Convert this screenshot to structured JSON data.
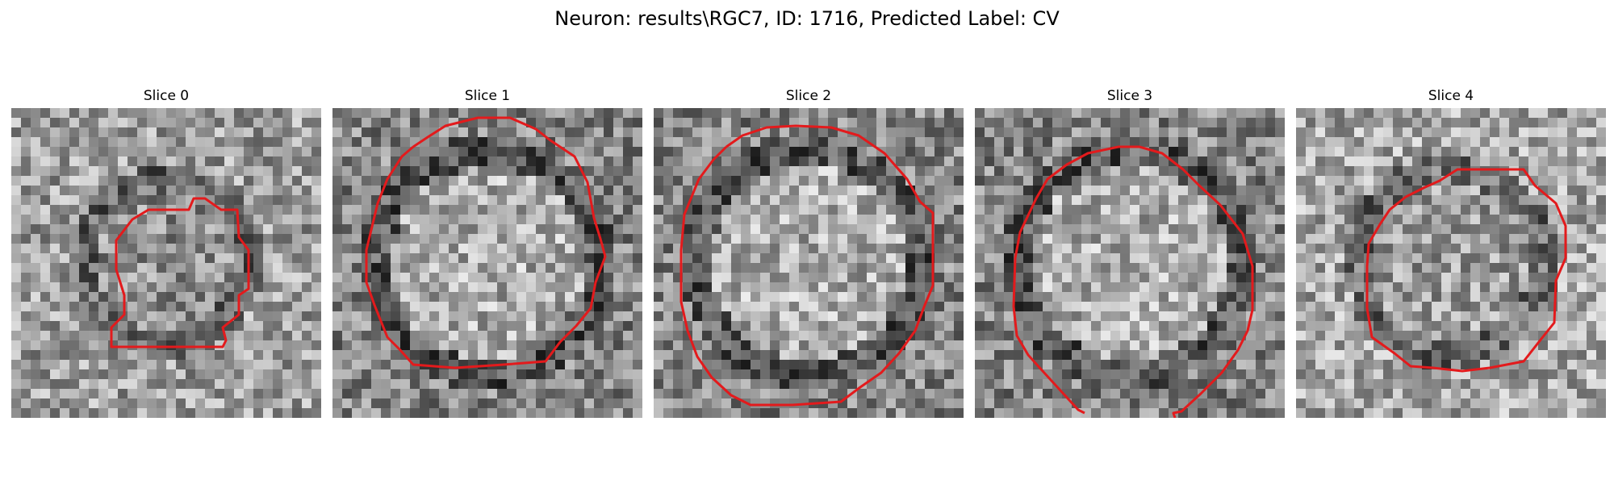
{
  "figure": {
    "title": "Neuron: results\\RGC7, ID: 1716, Predicted Label: CV",
    "contour_color": "#e31a1c",
    "colormap": "gray"
  },
  "slices": [
    {
      "label": "Slice 0",
      "seed": 11,
      "kind": "small"
    },
    {
      "label": "Slice 1",
      "seed": 23,
      "kind": "ring"
    },
    {
      "label": "Slice 2",
      "seed": 37,
      "kind": "ring"
    },
    {
      "label": "Slice 3",
      "seed": 51,
      "kind": "ring"
    },
    {
      "label": "Slice 4",
      "seed": 67,
      "kind": "inner"
    }
  ]
}
